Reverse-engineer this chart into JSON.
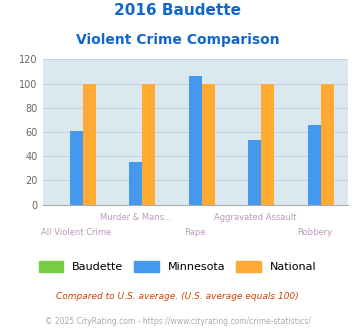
{
  "title_line1": "2016 Baudette",
  "title_line2": "Violent Crime Comparison",
  "categories": [
    "All Violent Crime",
    "Murder & Mans...",
    "Rape",
    "Aggravated Assault",
    "Robbery"
  ],
  "top_labels": [
    "",
    "Murder & Mans...",
    "",
    "Aggravated Assault",
    ""
  ],
  "bottom_labels": [
    "All Violent Crime",
    "",
    "Rape",
    "",
    "Robbery"
  ],
  "baudette": [
    0,
    0,
    0,
    0,
    0
  ],
  "minnesota": [
    61,
    35,
    106,
    53,
    66
  ],
  "national": [
    100,
    100,
    100,
    100,
    100
  ],
  "baudette_color": "#77cc44",
  "minnesota_color": "#4499ee",
  "national_color": "#ffaa33",
  "title_color": "#1166cc",
  "bg_color": "#dce8f0",
  "ylim": [
    0,
    120
  ],
  "yticks": [
    0,
    20,
    40,
    60,
    80,
    100,
    120
  ],
  "xlabel_color": "#bb99bb",
  "legend_labels": [
    "Baudette",
    "Minnesota",
    "National"
  ],
  "footnote1": "Compared to U.S. average. (U.S. average equals 100)",
  "footnote2": "© 2025 CityRating.com - https://www.cityrating.com/crime-statistics/",
  "footnote1_color": "#cc4400",
  "footnote2_color": "#aaaaaa",
  "bar_width": 0.22
}
